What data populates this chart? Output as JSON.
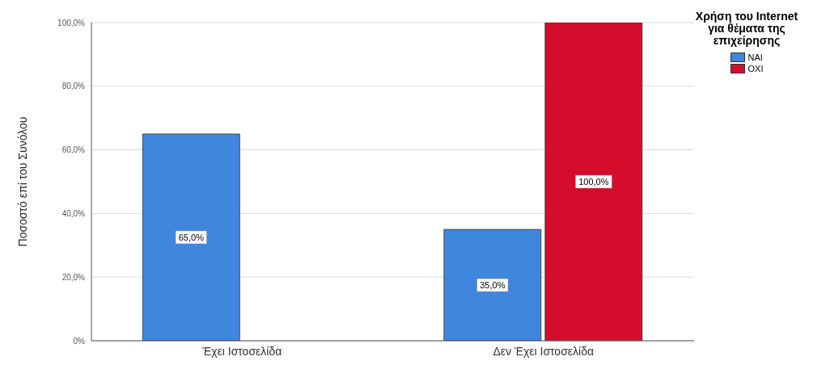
{
  "chart_data": {
    "type": "bar",
    "ylabel": "Ποσοστό επί του Συνόλου",
    "legend_title": "Χρήση του Internet για θέματα της επιχείρησης",
    "categories": [
      "Έχει Ιστοσελίδα",
      "Δεν Έχει Ιστοσελίδα"
    ],
    "series": [
      {
        "name": "ΝΑΙ",
        "color": "#3f86dd",
        "values": [
          65.0,
          35.0
        ],
        "value_labels": [
          "65,0%",
          "35,0%"
        ]
      },
      {
        "name": "ΟΧΙ",
        "color": "#d50c2c",
        "values": [
          null,
          100.0
        ],
        "value_labels": [
          null,
          "100,0%"
        ]
      }
    ],
    "ylim": [
      0,
      100
    ],
    "yticks": [
      {
        "value": 0,
        "label": "0%"
      },
      {
        "value": 20,
        "label": "20,0%"
      },
      {
        "value": 40,
        "label": "40,0%"
      },
      {
        "value": 60,
        "label": "60,0%"
      },
      {
        "value": 80,
        "label": "80,0%"
      },
      {
        "value": 100,
        "label": "100,0%"
      }
    ],
    "grid": "y",
    "legend": "top right"
  }
}
